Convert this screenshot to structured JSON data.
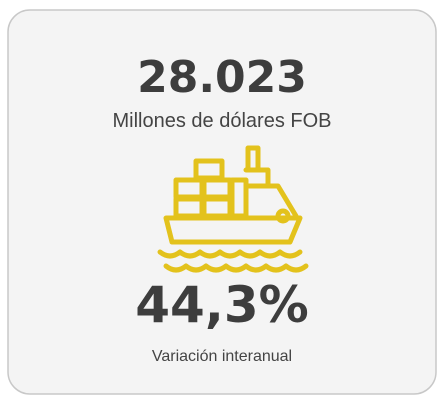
{
  "card": {
    "value": "28.023",
    "unit": "Millones de dólares FOB",
    "change": "44,3%",
    "change_label": "Variación interanual"
  }
}
